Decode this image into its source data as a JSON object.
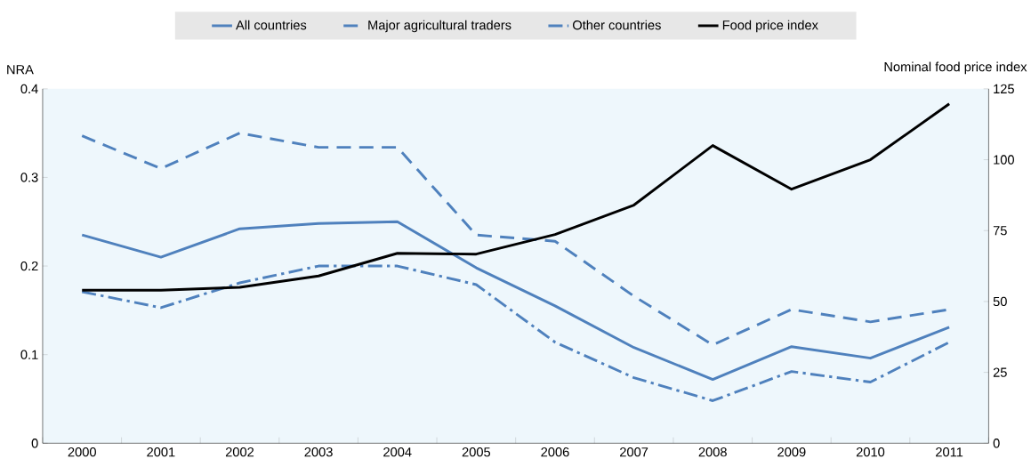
{
  "chart_data": {
    "type": "line",
    "categories": [
      "2000",
      "2001",
      "2002",
      "2003",
      "2004",
      "2005",
      "2006",
      "2007",
      "2008",
      "2009",
      "2010",
      "2011"
    ],
    "series": [
      {
        "name": "All countries",
        "color": "#4f81bd",
        "line_style": "solid",
        "values": [
          0.235,
          0.21,
          0.242,
          0.248,
          0.25,
          0.198,
          0.155,
          0.108,
          0.072,
          0.109,
          0.096,
          0.131
        ]
      },
      {
        "name": "Major agricultural traders",
        "color": "#4f81bd",
        "line_style": "dashed",
        "values": [
          0.347,
          0.31,
          0.35,
          0.334,
          0.334,
          0.235,
          0.228,
          0.166,
          0.111,
          0.151,
          0.137,
          0.151
        ]
      },
      {
        "name": "Other countries",
        "color": "#4f81bd",
        "line_style": "dashdot",
        "values": [
          0.171,
          0.153,
          0.181,
          0.2,
          0.2,
          0.179,
          0.114,
          0.074,
          0.048,
          0.081,
          0.069,
          0.114
        ]
      },
      {
        "name": "Food price index",
        "color": "#000000",
        "line_style": "solid",
        "axis": "y2",
        "values": [
          54,
          54,
          55,
          59,
          67,
          66.7,
          73.6,
          84,
          105,
          89.6,
          100,
          119.7
        ]
      }
    ],
    "ylabel": "NRA",
    "y2label": "Nominal food price index",
    "ylim": [
      0,
      0.4
    ],
    "yticks": [
      0,
      0.1,
      0.2,
      0.3,
      0.4
    ],
    "y2lim": [
      0,
      125
    ],
    "y2ticks": [
      0,
      25,
      50,
      75,
      100,
      125
    ],
    "grid": false,
    "legend": "top",
    "marker": "none"
  }
}
